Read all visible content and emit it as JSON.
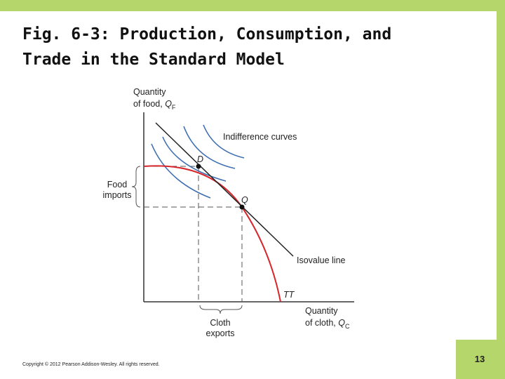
{
  "header": {
    "title_lines": [
      "Fig. 6-3: Production, Consumption, and",
      "Trade in the Standard Model"
    ]
  },
  "diagram": {
    "y_axis_label": {
      "line1": "Quantity",
      "line2": "of food, ",
      "symbol": "Q",
      "subscript": "F"
    },
    "x_axis_label": {
      "line1": "Quantity",
      "line2": "of cloth, ",
      "symbol": "Q",
      "subscript": "C"
    },
    "indifference_label": "Indifference curves",
    "isovalue_label": "Isovalue line",
    "frontier_label": "TT",
    "point_d": "D",
    "point_q": "Q",
    "food_imports": [
      "Food",
      "imports"
    ],
    "cloth_exports": [
      "Cloth",
      "exports"
    ]
  },
  "footer": {
    "copyright": "Copyright © 2012 Pearson Addison-Wesley. All rights reserved.",
    "page_number": "13"
  }
}
